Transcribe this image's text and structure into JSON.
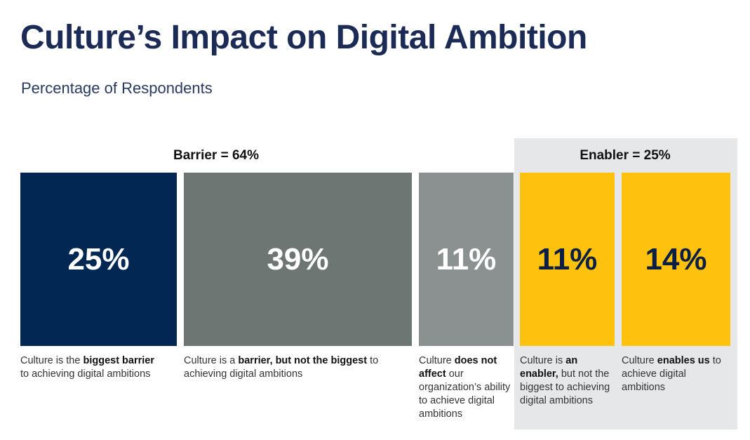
{
  "chart_data": {
    "type": "bar",
    "title": "Culture’s Impact on Digital Ambition",
    "subtitle": "Percentage of Respondents",
    "unit": "%",
    "groups": [
      {
        "name": "Barrier",
        "label": "Barrier = 64%",
        "total": 64,
        "members": [
          0,
          1
        ]
      },
      {
        "name": "Enabler",
        "label": "Enabler = 25%",
        "total": 25,
        "members": [
          3,
          4
        ]
      }
    ],
    "categories": [
      {
        "value": 25,
        "label": "25%",
        "color": "#012752",
        "text_color": "#ffffff",
        "description": [
          {
            "t": "Culture is the ",
            "b": false
          },
          {
            "t": "biggest barrier",
            "b": true
          },
          {
            "t": " to achieving digital ambitions",
            "b": false
          }
        ]
      },
      {
        "value": 39,
        "label": "39%",
        "color": "#6e7674",
        "text_color": "#ffffff",
        "description": [
          {
            "t": "Culture is a ",
            "b": false
          },
          {
            "t": "barrier, but not the biggest",
            "b": true
          },
          {
            "t": " to achieving digital ambitions",
            "b": false
          }
        ]
      },
      {
        "value": 11,
        "label": "11%",
        "color": "#8b9190",
        "text_color": "#ffffff",
        "description": [
          {
            "t": "Culture ",
            "b": false
          },
          {
            "t": "does not affect",
            "b": true
          },
          {
            "t": " our organization’s ability to achieve digital ambitions",
            "b": false
          }
        ]
      },
      {
        "value": 11,
        "label": "11%",
        "color": "#fec10e",
        "text_color": "#0b1f45",
        "description": [
          {
            "t": "Culture is ",
            "b": false
          },
          {
            "t": "an enabler,",
            "b": true
          },
          {
            "t": " but not the biggest to achieving digital ambitions",
            "b": false
          }
        ]
      },
      {
        "value": 14,
        "label": "14%",
        "color": "#fec10e",
        "text_color": "#0b1f45",
        "description": [
          {
            "t": "Culture ",
            "b": false
          },
          {
            "t": "enables us",
            "b": true
          },
          {
            "t": " to achieve digital ambitions",
            "b": false
          }
        ]
      }
    ],
    "enabler_panel_color": "#e6e7e8",
    "title_color": "#1b2b55"
  }
}
